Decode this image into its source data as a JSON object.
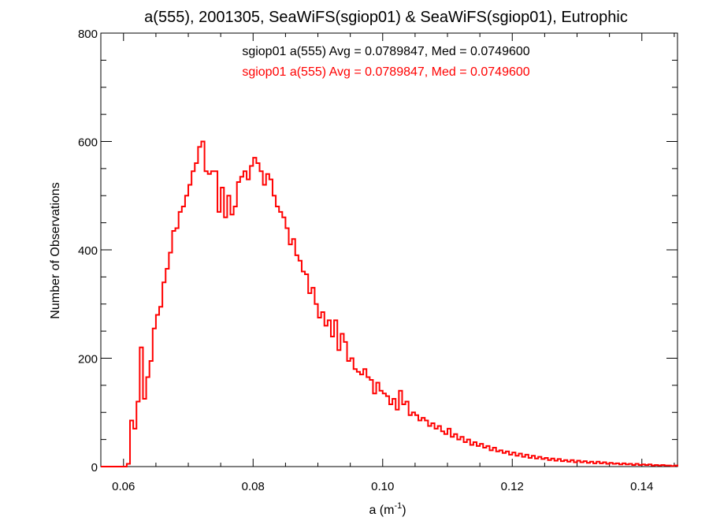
{
  "chart_data": {
    "type": "histogram",
    "title": "a(555), 2001305, SeaWiFS(sgiop01) & SeaWiFS(sgiop01), Eutrophic",
    "xlabel_main": "a (m",
    "xlabel_sup": "-1",
    "xlabel_close": ")",
    "ylabel": "Number of Observations",
    "xlim": [
      0.0565,
      0.1455
    ],
    "ylim": [
      0,
      800
    ],
    "x_ticks": [
      0.06,
      0.08,
      0.1,
      0.12,
      0.14
    ],
    "x_tick_labels": [
      "0.06",
      "0.08",
      "0.10",
      "0.12",
      "0.14"
    ],
    "y_ticks": [
      0,
      200,
      400,
      600,
      800
    ],
    "y_tick_labels": [
      "0",
      "200",
      "400",
      "600",
      "800"
    ],
    "annotations": [
      {
        "text": "sgiop01 a(555) Avg = 0.0789847, Med = 0.0749600",
        "color": "#000000"
      },
      {
        "text": "sgiop01 a(555) Avg = 0.0789847, Med = 0.0749600",
        "color": "#ff0000"
      }
    ],
    "series": [
      {
        "color": "#ff0000",
        "bins": [
          [
            0.0565,
            0
          ],
          [
            0.0605,
            5
          ],
          [
            0.061,
            85
          ],
          [
            0.0615,
            70
          ],
          [
            0.062,
            120
          ],
          [
            0.0625,
            220
          ],
          [
            0.063,
            125
          ],
          [
            0.0635,
            165
          ],
          [
            0.064,
            195
          ],
          [
            0.0645,
            255
          ],
          [
            0.065,
            280
          ],
          [
            0.0655,
            295
          ],
          [
            0.066,
            340
          ],
          [
            0.0665,
            365
          ],
          [
            0.067,
            395
          ],
          [
            0.0675,
            435
          ],
          [
            0.068,
            440
          ],
          [
            0.0685,
            470
          ],
          [
            0.069,
            480
          ],
          [
            0.0695,
            500
          ],
          [
            0.07,
            520
          ],
          [
            0.0705,
            545
          ],
          [
            0.071,
            560
          ],
          [
            0.0715,
            590
          ],
          [
            0.072,
            600
          ],
          [
            0.0725,
            545
          ],
          [
            0.073,
            540
          ],
          [
            0.0735,
            545
          ],
          [
            0.074,
            545
          ],
          [
            0.0745,
            470
          ],
          [
            0.075,
            515
          ],
          [
            0.0755,
            460
          ],
          [
            0.076,
            500
          ],
          [
            0.0765,
            465
          ],
          [
            0.077,
            480
          ],
          [
            0.0775,
            525
          ],
          [
            0.078,
            535
          ],
          [
            0.0785,
            545
          ],
          [
            0.079,
            530
          ],
          [
            0.0795,
            555
          ],
          [
            0.08,
            570
          ],
          [
            0.0805,
            560
          ],
          [
            0.081,
            545
          ],
          [
            0.0815,
            520
          ],
          [
            0.082,
            540
          ],
          [
            0.0825,
            530
          ],
          [
            0.083,
            500
          ],
          [
            0.0835,
            480
          ],
          [
            0.084,
            470
          ],
          [
            0.0845,
            460
          ],
          [
            0.085,
            440
          ],
          [
            0.0855,
            410
          ],
          [
            0.086,
            420
          ],
          [
            0.0865,
            390
          ],
          [
            0.087,
            380
          ],
          [
            0.0875,
            360
          ],
          [
            0.088,
            355
          ],
          [
            0.0885,
            320
          ],
          [
            0.089,
            330
          ],
          [
            0.0895,
            300
          ],
          [
            0.09,
            275
          ],
          [
            0.0905,
            285
          ],
          [
            0.091,
            260
          ],
          [
            0.0915,
            270
          ],
          [
            0.092,
            240
          ],
          [
            0.0925,
            270
          ],
          [
            0.093,
            215
          ],
          [
            0.0935,
            245
          ],
          [
            0.094,
            230
          ],
          [
            0.0945,
            195
          ],
          [
            0.095,
            200
          ],
          [
            0.0955,
            180
          ],
          [
            0.096,
            175
          ],
          [
            0.0965,
            170
          ],
          [
            0.097,
            180
          ],
          [
            0.0975,
            165
          ],
          [
            0.098,
            160
          ],
          [
            0.0985,
            135
          ],
          [
            0.099,
            155
          ],
          [
            0.0995,
            140
          ],
          [
            0.1,
            135
          ],
          [
            0.1005,
            130
          ],
          [
            0.101,
            115
          ],
          [
            0.1015,
            125
          ],
          [
            0.102,
            105
          ],
          [
            0.1025,
            140
          ],
          [
            0.103,
            115
          ],
          [
            0.1035,
            120
          ],
          [
            0.104,
            95
          ],
          [
            0.1045,
            100
          ],
          [
            0.105,
            95
          ],
          [
            0.1055,
            85
          ],
          [
            0.106,
            90
          ],
          [
            0.1065,
            85
          ],
          [
            0.107,
            75
          ],
          [
            0.1075,
            80
          ],
          [
            0.108,
            70
          ],
          [
            0.1085,
            75
          ],
          [
            0.109,
            65
          ],
          [
            0.1095,
            60
          ],
          [
            0.11,
            70
          ],
          [
            0.1105,
            55
          ],
          [
            0.111,
            60
          ],
          [
            0.1115,
            50
          ],
          [
            0.112,
            55
          ],
          [
            0.1125,
            45
          ],
          [
            0.113,
            50
          ],
          [
            0.1135,
            40
          ],
          [
            0.114,
            45
          ],
          [
            0.1145,
            38
          ],
          [
            0.115,
            42
          ],
          [
            0.1155,
            35
          ],
          [
            0.116,
            38
          ],
          [
            0.1165,
            30
          ],
          [
            0.117,
            35
          ],
          [
            0.1175,
            28
          ],
          [
            0.118,
            30
          ],
          [
            0.1185,
            25
          ],
          [
            0.119,
            28
          ],
          [
            0.1195,
            22
          ],
          [
            0.12,
            26
          ],
          [
            0.1205,
            20
          ],
          [
            0.121,
            24
          ],
          [
            0.1215,
            18
          ],
          [
            0.122,
            22
          ],
          [
            0.1225,
            16
          ],
          [
            0.123,
            20
          ],
          [
            0.1235,
            15
          ],
          [
            0.124,
            18
          ],
          [
            0.1245,
            14
          ],
          [
            0.125,
            16
          ],
          [
            0.1255,
            12
          ],
          [
            0.126,
            15
          ],
          [
            0.1265,
            11
          ],
          [
            0.127,
            14
          ],
          [
            0.1275,
            10
          ],
          [
            0.128,
            12
          ],
          [
            0.1285,
            9
          ],
          [
            0.129,
            12
          ],
          [
            0.1295,
            8
          ],
          [
            0.13,
            11
          ],
          [
            0.1305,
            8
          ],
          [
            0.131,
            10
          ],
          [
            0.1315,
            7
          ],
          [
            0.132,
            9
          ],
          [
            0.1325,
            6
          ],
          [
            0.133,
            9
          ],
          [
            0.1335,
            6
          ],
          [
            0.134,
            8
          ],
          [
            0.1345,
            5
          ],
          [
            0.135,
            7
          ],
          [
            0.1355,
            5
          ],
          [
            0.136,
            6
          ],
          [
            0.1365,
            4
          ],
          [
            0.137,
            6
          ],
          [
            0.1375,
            4
          ],
          [
            0.138,
            5
          ],
          [
            0.1385,
            3
          ],
          [
            0.139,
            5
          ],
          [
            0.1395,
            3
          ],
          [
            0.14,
            4
          ],
          [
            0.1405,
            3
          ],
          [
            0.141,
            4
          ],
          [
            0.1415,
            2
          ],
          [
            0.142,
            3
          ],
          [
            0.1425,
            2
          ],
          [
            0.143,
            3
          ],
          [
            0.1435,
            2
          ],
          [
            0.144,
            2
          ],
          [
            0.1445,
            1
          ],
          [
            0.145,
            2
          ],
          [
            0.1455,
            0
          ]
        ]
      }
    ]
  }
}
